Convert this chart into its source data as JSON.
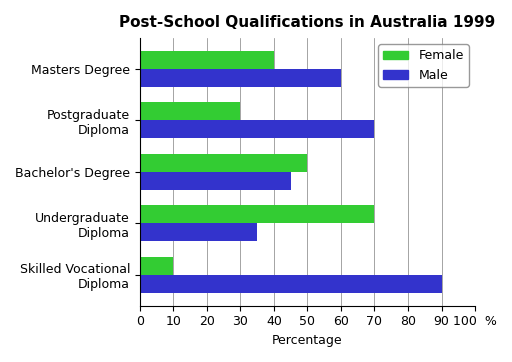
{
  "title": "Post-School Qualifications in Australia 1999",
  "categories": [
    "Skilled Vocational\nDiploma",
    "Undergraduate\nDiploma",
    "Bachelor's Degree",
    "Postgraduate\nDiploma",
    "Masters Degree"
  ],
  "female_values": [
    10,
    70,
    50,
    30,
    40
  ],
  "male_values": [
    90,
    35,
    45,
    70,
    60
  ],
  "female_color": "#33cc33",
  "male_color": "#3333cc",
  "xlabel": "Percentage",
  "xlim": [
    0,
    100
  ],
  "xticks": [
    0,
    10,
    20,
    30,
    40,
    50,
    60,
    70,
    80,
    90,
    100
  ],
  "xtick_labels": [
    "0",
    "10",
    "20",
    "30",
    "40",
    "50",
    "60",
    "70",
    "80",
    "90",
    "100  %"
  ],
  "background_color": "#ffffff",
  "title_fontsize": 11,
  "label_fontsize": 9,
  "tick_fontsize": 9
}
